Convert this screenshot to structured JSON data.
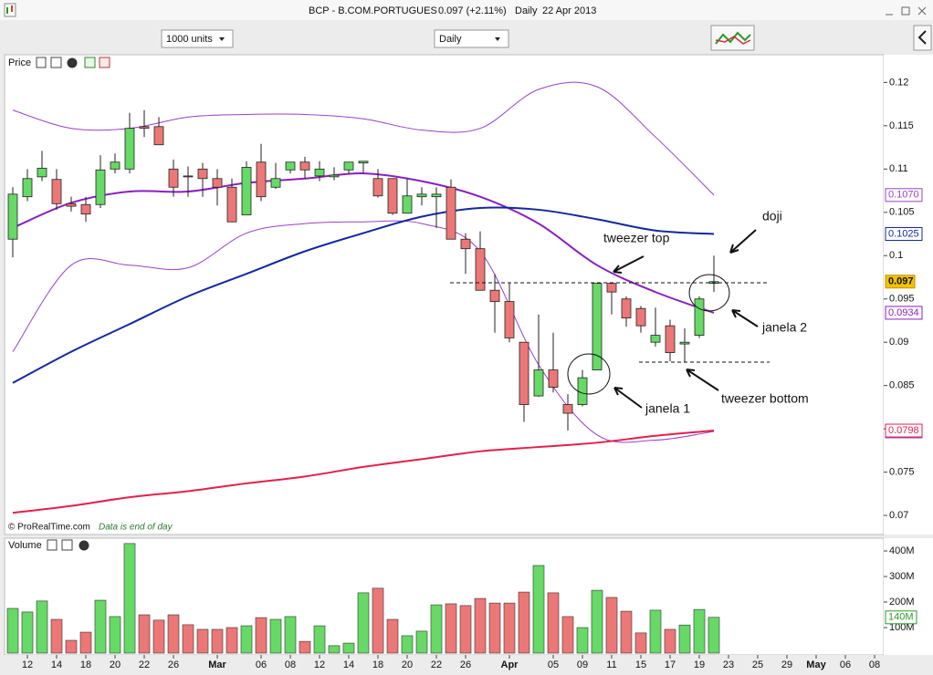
{
  "window": {
    "symbol": "BCP - B.COM.PORTUGUES",
    "quote": "0.097 (+2.11%)",
    "period": "Daily",
    "date": "22 Apr 2013"
  },
  "toolbar": {
    "units": "1000 units",
    "timeframe": "Daily"
  },
  "chart_data": {
    "type": "candlestick",
    "panel_label": "Price",
    "up_color": "#66d966",
    "down_color": "#ec7777",
    "ylim": [
      0.0679,
      0.1232
    ],
    "yticks": [
      0.07,
      0.075,
      0.08,
      0.085,
      0.09,
      0.095,
      0.1,
      0.105,
      0.11,
      0.115,
      0.12
    ],
    "xticks": [
      {
        "value": 1,
        "label": "12"
      },
      {
        "value": 3,
        "label": "14"
      },
      {
        "value": 5,
        "label": "18"
      },
      {
        "value": 7,
        "label": "20"
      },
      {
        "value": 9,
        "label": "22"
      },
      {
        "value": 11,
        "label": "26"
      },
      {
        "value": 14,
        "label": "Mar"
      },
      {
        "value": 17,
        "label": "06"
      },
      {
        "value": 19,
        "label": "08"
      },
      {
        "value": 21,
        "label": "12"
      },
      {
        "value": 23,
        "label": "14"
      },
      {
        "value": 25,
        "label": "18"
      },
      {
        "value": 27,
        "label": "20"
      },
      {
        "value": 29,
        "label": "22"
      },
      {
        "value": 31,
        "label": "26"
      },
      {
        "value": 34,
        "label": "Apr"
      },
      {
        "value": 37,
        "label": "05"
      },
      {
        "value": 39,
        "label": "09"
      },
      {
        "value": 41,
        "label": "11"
      },
      {
        "value": 43,
        "label": "15"
      },
      {
        "value": 45,
        "label": "17"
      },
      {
        "value": 47,
        "label": "19"
      },
      {
        "value": 49,
        "label": "23"
      },
      {
        "value": 51,
        "label": "25"
      },
      {
        "value": 53,
        "label": "29"
      },
      {
        "value": 55,
        "label": "May"
      },
      {
        "value": 57,
        "label": "06"
      },
      {
        "value": 59,
        "label": "08"
      }
    ],
    "candles": [
      {
        "o": 0.1019,
        "h": 0.1079,
        "l": 0.0998,
        "c": 0.1071
      },
      {
        "o": 0.1068,
        "h": 0.11,
        "l": 0.1063,
        "c": 0.1089
      },
      {
        "o": 0.1091,
        "h": 0.1121,
        "l": 0.1086,
        "c": 0.1101
      },
      {
        "o": 0.1088,
        "h": 0.11,
        "l": 0.1053,
        "c": 0.106
      },
      {
        "o": 0.106,
        "h": 0.1068,
        "l": 0.1051,
        "c": 0.1057
      },
      {
        "o": 0.1059,
        "h": 0.1068,
        "l": 0.1039,
        "c": 0.1048
      },
      {
        "o": 0.1059,
        "h": 0.1116,
        "l": 0.1055,
        "c": 0.1099
      },
      {
        "o": 0.11,
        "h": 0.1118,
        "l": 0.1095,
        "c": 0.1108
      },
      {
        "o": 0.11,
        "h": 0.1165,
        "l": 0.1095,
        "c": 0.1147
      },
      {
        "o": 0.1149,
        "h": 0.1168,
        "l": 0.1137,
        "c": 0.1147
      },
      {
        "o": 0.1149,
        "h": 0.116,
        "l": 0.1128,
        "c": 0.1128
      },
      {
        "o": 0.11,
        "h": 0.1111,
        "l": 0.1068,
        "c": 0.1079
      },
      {
        "o": 0.1092,
        "h": 0.1103,
        "l": 0.1068,
        "c": 0.1091
      },
      {
        "o": 0.11,
        "h": 0.1107,
        "l": 0.1068,
        "c": 0.1089
      },
      {
        "o": 0.1089,
        "h": 0.11,
        "l": 0.1058,
        "c": 0.1079
      },
      {
        "o": 0.1079,
        "h": 0.1089,
        "l": 0.1039,
        "c": 0.1039
      },
      {
        "o": 0.1047,
        "h": 0.1109,
        "l": 0.1047,
        "c": 0.1102
      },
      {
        "o": 0.1108,
        "h": 0.1129,
        "l": 0.1063,
        "c": 0.1068
      },
      {
        "o": 0.1079,
        "h": 0.1107,
        "l": 0.1077,
        "c": 0.1089
      },
      {
        "o": 0.1099,
        "h": 0.1108,
        "l": 0.1095,
        "c": 0.1108
      },
      {
        "o": 0.1108,
        "h": 0.1114,
        "l": 0.1089,
        "c": 0.1099
      },
      {
        "o": 0.1092,
        "h": 0.1109,
        "l": 0.1086,
        "c": 0.11
      },
      {
        "o": 0.1091,
        "h": 0.1102,
        "l": 0.1087,
        "c": 0.1093
      },
      {
        "o": 0.1099,
        "h": 0.1108,
        "l": 0.1095,
        "c": 0.1108
      },
      {
        "o": 0.1107,
        "h": 0.1109,
        "l": 0.1095,
        "c": 0.1109
      },
      {
        "o": 0.1089,
        "h": 0.11,
        "l": 0.1067,
        "c": 0.1069
      },
      {
        "o": 0.1089,
        "h": 0.1089,
        "l": 0.1047,
        "c": 0.1049
      },
      {
        "o": 0.1049,
        "h": 0.1089,
        "l": 0.1049,
        "c": 0.1069
      },
      {
        "o": 0.1068,
        "h": 0.1079,
        "l": 0.1058,
        "c": 0.1071
      },
      {
        "o": 0.1068,
        "h": 0.1079,
        "l": 0.1032,
        "c": 0.1071
      },
      {
        "o": 0.1079,
        "h": 0.1088,
        "l": 0.1019,
        "c": 0.1019
      },
      {
        "o": 0.1019,
        "h": 0.1026,
        "l": 0.0979,
        "c": 0.1008
      },
      {
        "o": 0.1008,
        "h": 0.1028,
        "l": 0.096,
        "c": 0.096
      },
      {
        "o": 0.096,
        "h": 0.0979,
        "l": 0.0911,
        "c": 0.0947
      },
      {
        "o": 0.0947,
        "h": 0.0968,
        "l": 0.09,
        "c": 0.0905
      },
      {
        "o": 0.09,
        "h": 0.09,
        "l": 0.0808,
        "c": 0.0828
      },
      {
        "o": 0.0838,
        "h": 0.0932,
        "l": 0.0837,
        "c": 0.0868
      },
      {
        "o": 0.0868,
        "h": 0.0911,
        "l": 0.0842,
        "c": 0.0848
      },
      {
        "o": 0.0828,
        "h": 0.084,
        "l": 0.0798,
        "c": 0.0818
      },
      {
        "o": 0.0828,
        "h": 0.0868,
        "l": 0.0826,
        "c": 0.0859
      },
      {
        "o": 0.0868,
        "h": 0.0968,
        "l": 0.0868,
        "c": 0.0968
      },
      {
        "o": 0.0968,
        "h": 0.0968,
        "l": 0.0932,
        "c": 0.0958
      },
      {
        "o": 0.095,
        "h": 0.0953,
        "l": 0.0918,
        "c": 0.0928
      },
      {
        "o": 0.0939,
        "h": 0.0942,
        "l": 0.0911,
        "c": 0.0919
      },
      {
        "o": 0.09,
        "h": 0.094,
        "l": 0.0895,
        "c": 0.0908
      },
      {
        "o": 0.0919,
        "h": 0.0926,
        "l": 0.0878,
        "c": 0.0888
      },
      {
        "o": 0.0898,
        "h": 0.0916,
        "l": 0.0877,
        "c": 0.09
      },
      {
        "o": 0.0908,
        "h": 0.0953,
        "l": 0.0905,
        "c": 0.095
      },
      {
        "o": 0.0968,
        "h": 0.1,
        "l": 0.0958,
        "c": 0.097
      }
    ],
    "lines": [
      {
        "color": "#9a3fc8",
        "width": 1,
        "x": [
          0,
          4,
          8,
          12,
          16,
          20,
          24,
          28,
          32,
          36,
          40,
          44,
          48
        ],
        "values": [
          0.1168,
          0.1147,
          0.1147,
          0.116,
          0.1163,
          0.1163,
          0.1158,
          0.1145,
          0.1147,
          0.1192,
          0.1195,
          0.1137,
          0.107
        ],
        "last_label": "0.1070"
      },
      {
        "color": "#9a3fc8",
        "width": 1,
        "x": [
          0,
          4,
          8,
          12,
          16,
          20,
          24,
          28,
          32,
          36,
          40,
          44,
          48
        ],
        "values": [
          0.0889,
          0.0989,
          0.0989,
          0.0986,
          0.1026,
          0.1037,
          0.1039,
          0.1037,
          0.1005,
          0.0874,
          0.0793,
          0.0787,
          0.0797
        ]
      },
      {
        "color": "#8a1fbf",
        "width": 2,
        "x": [
          0,
          4,
          8,
          12,
          16,
          20,
          24,
          28,
          32,
          36,
          40,
          44,
          48
        ],
        "values": [
          0.1032,
          0.1061,
          0.1074,
          0.1074,
          0.1084,
          0.1089,
          0.1095,
          0.1086,
          0.1068,
          0.1037,
          0.0989,
          0.0958,
          0.0934
        ]
      },
      {
        "color": "#14289e",
        "width": 2,
        "x": [
          0,
          4,
          8,
          12,
          16,
          20,
          24,
          28,
          32,
          36,
          40,
          44,
          48
        ],
        "values": [
          0.0853,
          0.0889,
          0.0921,
          0.0953,
          0.0979,
          0.1005,
          0.1026,
          0.1045,
          0.1055,
          0.1053,
          0.1042,
          0.1029,
          0.1025
        ]
      },
      {
        "color": "#e2204c",
        "width": 2,
        "x": [
          0,
          4,
          8,
          12,
          16,
          20,
          24,
          28,
          32,
          36,
          40,
          44,
          48
        ],
        "values": [
          0.0703,
          0.0711,
          0.0721,
          0.0728,
          0.0737,
          0.0745,
          0.0756,
          0.0765,
          0.0774,
          0.0779,
          0.0784,
          0.0792,
          0.0798
        ]
      }
    ],
    "annotations": {
      "doji": "doji",
      "tweezer_top": "tweezer top",
      "janela_2": "janela 2",
      "janela_1": "janela 1",
      "tweezer_bottom": "tweezer bottom"
    },
    "credit": "© ProRealTime.com",
    "note": "Data is end of day",
    "volume": {
      "panel_label": "Volume",
      "ylim": [
        0,
        450
      ],
      "yticks": [
        {
          "value": 100,
          "label": "100M"
        },
        {
          "value": 200,
          "label": "200M"
        },
        {
          "value": 300,
          "label": "300M"
        },
        {
          "value": 400,
          "label": "400M"
        }
      ],
      "values": [
        175,
        161,
        204,
        132,
        50,
        82,
        207,
        143,
        429,
        150,
        129,
        150,
        111,
        93,
        93,
        100,
        107,
        139,
        132,
        143,
        46,
        107,
        29,
        39,
        236,
        254,
        132,
        68,
        86,
        189,
        193,
        186,
        214,
        196,
        196,
        239,
        343,
        236,
        143,
        100,
        246,
        218,
        164,
        79,
        168,
        93,
        110,
        171,
        140
      ],
      "last_label": "140M"
    }
  }
}
